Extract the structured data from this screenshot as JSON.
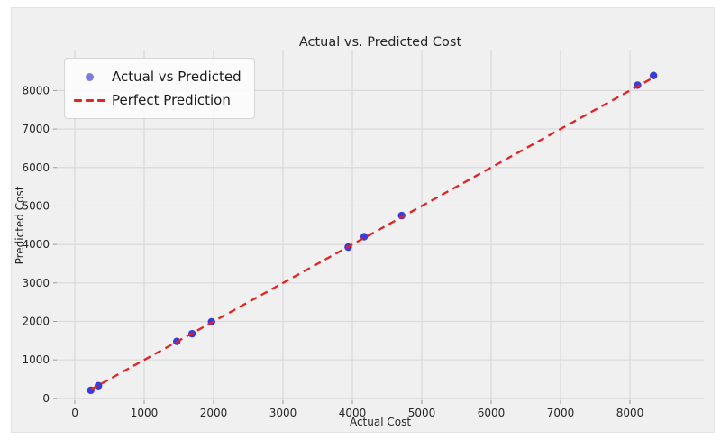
{
  "figure": {
    "title": "Actual vs. Predicted Cost",
    "background_color": "#f0f0f1",
    "grid_color": "#d9d9db",
    "text_color": "#262626"
  },
  "legend": {
    "position": "upper left",
    "entries": [
      {
        "label": "Actual vs Predicted",
        "marker": "dot",
        "color": "#7b7be0"
      },
      {
        "label": "Perfect Prediction",
        "marker": "dashed-line",
        "color": "#e32222"
      }
    ]
  },
  "chart_data": {
    "type": "scatter",
    "title": "Actual vs. Predicted Cost",
    "xlabel": "Actual Cost",
    "ylabel": "Predicted Cost",
    "xlim": [
      -260,
      9065
    ],
    "ylim": [
      -50,
      9040
    ],
    "x_ticks": [
      0,
      1000,
      2000,
      3000,
      4000,
      5000,
      6000,
      7000,
      8000
    ],
    "y_ticks": [
      0,
      1000,
      2000,
      3000,
      4000,
      5000,
      6000,
      7000,
      8000
    ],
    "grid": true,
    "legend_position": "upper left",
    "series": [
      {
        "name": "Actual vs Predicted",
        "type": "scatter",
        "color": "#2b2bd5",
        "points": [
          [
            230,
            210
          ],
          [
            340,
            330
          ],
          [
            1470,
            1480
          ],
          [
            1690,
            1680
          ],
          [
            1970,
            1990
          ],
          [
            3940,
            3930
          ],
          [
            4170,
            4200
          ],
          [
            4710,
            4750
          ],
          [
            8110,
            8140
          ],
          [
            8340,
            8390
          ]
        ]
      },
      {
        "name": "Perfect Prediction",
        "type": "dashed-line",
        "color": "#e32222",
        "points": [
          [
            230,
            230
          ],
          [
            8340,
            8340
          ]
        ]
      }
    ]
  }
}
